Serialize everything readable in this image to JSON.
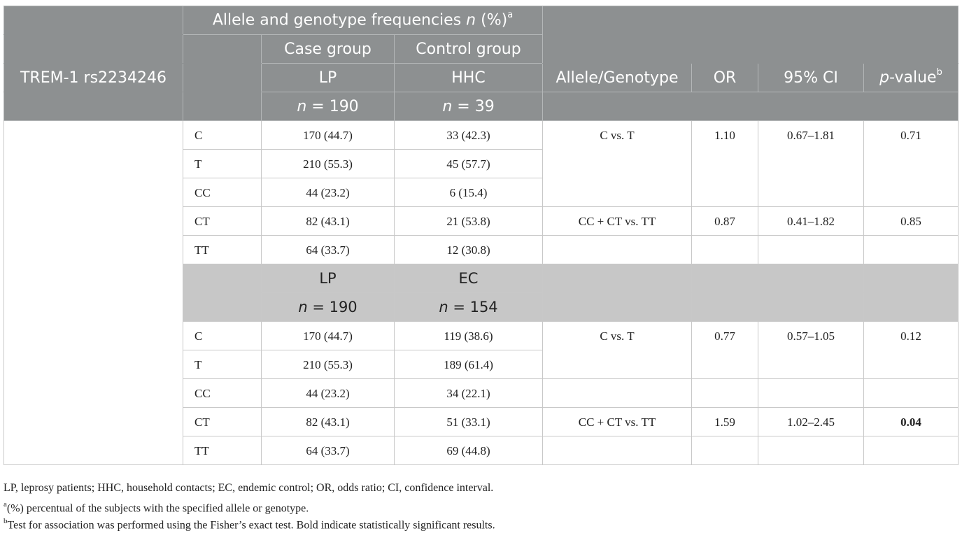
{
  "header": {
    "snp_label": "TREM-1 rs2234246",
    "freq_title": "Allele and genotype frequencies",
    "freq_title_n": "n",
    "freq_title_pct": "(%)",
    "freq_title_sup": "a",
    "case_group": "Case group",
    "control_group": "Control group",
    "case_name": "LP",
    "control_name": "HHC",
    "case_n_label": "n",
    "case_n_value": "= 190",
    "control_n_label": "n",
    "control_n_value": "= 39",
    "allele_genotype": "Allele/Genotype",
    "or": "OR",
    "ci": "95% CI",
    "pvalue_p": "p",
    "pvalue_rest": "-value",
    "pvalue_sup": "b"
  },
  "block1": {
    "rows": [
      {
        "g": "C",
        "case": "170 (44.7)",
        "ctrl": "33 (42.3)"
      },
      {
        "g": "T",
        "case": "210 (55.3)",
        "ctrl": "45 (57.7)"
      },
      {
        "g": "CC",
        "case": "44 (23.2)",
        "ctrl": "6 (15.4)"
      },
      {
        "g": "CT",
        "case": "82 (43.1)",
        "ctrl": "21 (53.8)"
      },
      {
        "g": "TT",
        "case": "64 (33.7)",
        "ctrl": "12 (30.8)"
      }
    ],
    "tests": [
      {
        "comparison": "C vs. T",
        "or": "1.10",
        "ci": "0.67–1.81",
        "p": "0.71"
      },
      {
        "comparison": "CC + CT vs. TT",
        "or": "0.87",
        "ci": "0.41–1.82",
        "p": "0.85"
      }
    ]
  },
  "subheader": {
    "case_name": "LP",
    "control_name": "EC",
    "case_n_label": "n",
    "case_n_value": "= 190",
    "control_n_label": "n",
    "control_n_value": "= 154"
  },
  "block2": {
    "rows": [
      {
        "g": "C",
        "case": "170 (44.7)",
        "ctrl": "119 (38.6)"
      },
      {
        "g": "T",
        "case": "210 (55.3)",
        "ctrl": "189 (61.4)"
      },
      {
        "g": "CC",
        "case": "44 (23.2)",
        "ctrl": "34 (22.1)"
      },
      {
        "g": "CT",
        "case": "82 (43.1)",
        "ctrl": "51 (33.1)"
      },
      {
        "g": "TT",
        "case": "64 (33.7)",
        "ctrl": "69 (44.8)"
      }
    ],
    "tests": [
      {
        "comparison": "C vs. T",
        "or": "0.77",
        "ci": "0.57–1.05",
        "p": "0.12"
      },
      {
        "comparison": "CC + CT vs. TT",
        "or": "1.59",
        "ci": "1.02–2.45",
        "p": "0.04"
      }
    ]
  },
  "footnotes": {
    "abbreviations": "LP, leprosy patients; HHC, household contacts; EC, endemic control; OR, odds ratio; CI, confidence interval.",
    "a_mark": "a",
    "a_text": "(%) percentual of the subjects with the specified allele or genotype.",
    "b_mark": "b",
    "b_text": "Test for association was performed using the Fisher’s exact test. Bold indicate statistically significant results."
  }
}
